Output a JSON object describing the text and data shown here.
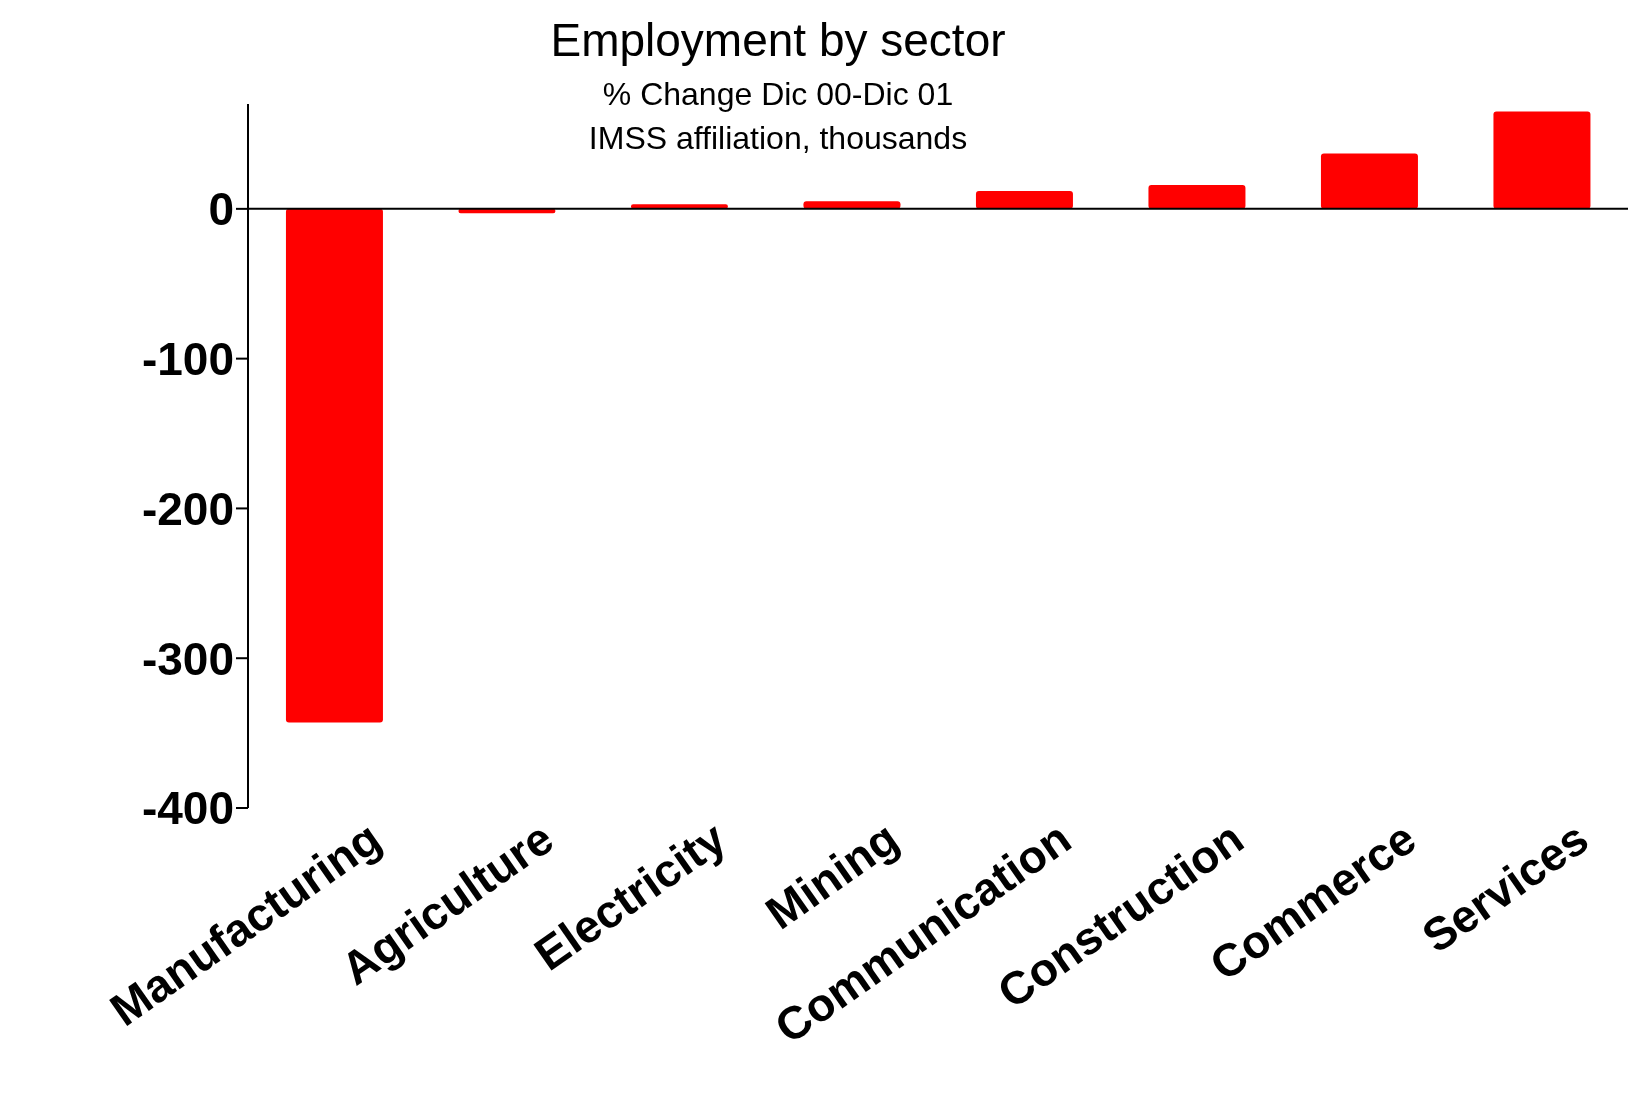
{
  "chart_data": {
    "type": "bar",
    "title": "Employment by sector",
    "subtitle": "% Change Dic 00-Dic 01",
    "annotations": [
      "IMSS affiliation, thousands"
    ],
    "categories": [
      "Manufacturing",
      "Agriculture",
      "Electricity",
      "Mining",
      "Communication",
      "Construction",
      "Commerce",
      "Services"
    ],
    "values": [
      -343,
      -3,
      3,
      5,
      12,
      16,
      37,
      65
    ],
    "color": "#ff0000",
    "ylim": [
      -400,
      70
    ],
    "yticks": [
      -400,
      -300,
      -200,
      -100,
      0
    ]
  }
}
